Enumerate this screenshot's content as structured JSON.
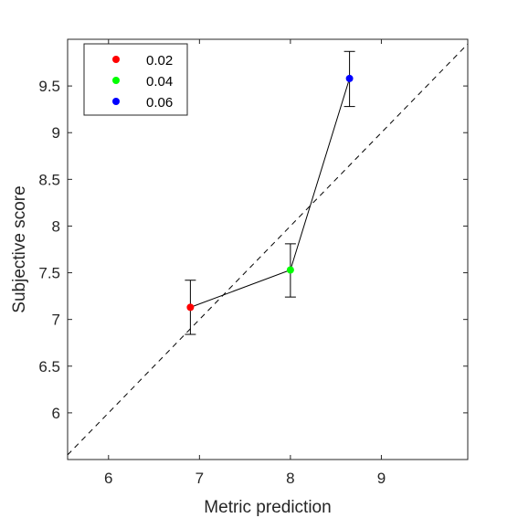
{
  "chart_data": {
    "type": "scatter",
    "xlabel": "Metric prediction",
    "ylabel": "Subjective score",
    "xlim": [
      5.55,
      9.95
    ],
    "ylim": [
      5.5,
      10.0
    ],
    "xticks": [
      6,
      7,
      8,
      9
    ],
    "yticks": [
      6,
      6.5,
      7,
      7.5,
      8,
      8.5,
      9,
      9.5
    ],
    "xtick_labels": [
      "6",
      "7",
      "8",
      "9"
    ],
    "ytick_labels": [
      "6",
      "6.5",
      "7",
      "7.5",
      "8",
      "8.5",
      "9",
      "9.5"
    ],
    "grid": false,
    "legend_position": "top-left",
    "reference_line": {
      "style": "dashed",
      "description": "identity y = x"
    },
    "connecting_line": true,
    "points": [
      {
        "name": "0.02",
        "x": 6.9,
        "y": 7.13,
        "err_low": 6.84,
        "err_high": 7.42,
        "color": "#ff0000"
      },
      {
        "name": "0.04",
        "x": 8.0,
        "y": 7.53,
        "err_low": 7.24,
        "err_high": 7.81,
        "color": "#00ff00"
      },
      {
        "name": "0.06",
        "x": 8.65,
        "y": 9.58,
        "err_low": 9.28,
        "err_high": 9.87,
        "color": "#0000ff"
      }
    ]
  }
}
